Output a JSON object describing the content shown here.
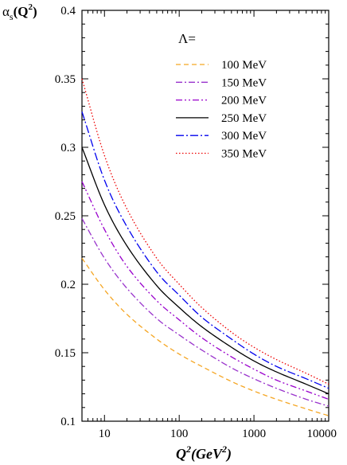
{
  "chart_data": {
    "type": "line",
    "title": "",
    "ylabel": {
      "base": "α",
      "sub": "s",
      "mid": "(Q",
      "sup": "2",
      "end": ")"
    },
    "xlabel": {
      "base": "Q",
      "sup": "2",
      "mid": "(GeV",
      "sup2": "2",
      "end": ")"
    },
    "xscale": "log",
    "xlim": [
      5,
      10000
    ],
    "ylim": [
      0.1,
      0.4
    ],
    "yticks": [
      {
        "value": 0.1,
        "label": "0.1"
      },
      {
        "value": 0.15,
        "label": "0.15"
      },
      {
        "value": 0.2,
        "label": "0.2"
      },
      {
        "value": 0.25,
        "label": "0.25"
      },
      {
        "value": 0.3,
        "label": "0.3"
      },
      {
        "value": 0.35,
        "label": "0.35"
      },
      {
        "value": 0.4,
        "label": "0.4"
      }
    ],
    "xticks": [
      {
        "value": 10,
        "label": "10"
      },
      {
        "value": 100,
        "label": "100"
      },
      {
        "value": 1000,
        "label": "1000"
      },
      {
        "value": 10000,
        "label": "10000"
      }
    ],
    "grid": false,
    "legend": {
      "title": "Λ=",
      "position": "top-right"
    },
    "x": [
      5,
      10,
      20,
      50,
      100,
      200,
      500,
      1000,
      2000,
      5000,
      10000
    ],
    "series": [
      {
        "name": "100 MeV",
        "color": "#f5a623",
        "dash": "dashed",
        "values": [
          0.219,
          0.196,
          0.178,
          0.16,
          0.149,
          0.14,
          0.129,
          0.122,
          0.116,
          0.109,
          0.104
        ]
      },
      {
        "name": "150 MeV",
        "color": "#9933cc",
        "dash": "dashdot",
        "values": [
          0.248,
          0.219,
          0.197,
          0.175,
          0.163,
          0.152,
          0.139,
          0.131,
          0.124,
          0.116,
          0.111
        ]
      },
      {
        "name": "200 MeV",
        "color": "#9900cc",
        "dash": "dashdotdot",
        "values": [
          0.275,
          0.24,
          0.213,
          0.188,
          0.174,
          0.161,
          0.147,
          0.138,
          0.13,
          0.122,
          0.116
        ]
      },
      {
        "name": "250 MeV",
        "color": "#000000",
        "dash": "solid",
        "values": [
          0.3,
          0.258,
          0.228,
          0.199,
          0.183,
          0.169,
          0.154,
          0.144,
          0.136,
          0.127,
          0.12
        ]
      },
      {
        "name": "300 MeV",
        "color": "#0000ee",
        "dash": "dashdotlong",
        "values": [
          0.326,
          0.276,
          0.242,
          0.209,
          0.192,
          0.176,
          0.16,
          0.149,
          0.14,
          0.131,
          0.124
        ]
      },
      {
        "name": "350 MeV",
        "color": "#ee0000",
        "dash": "dotted",
        "values": [
          0.35,
          0.294,
          0.255,
          0.219,
          0.2,
          0.183,
          0.165,
          0.154,
          0.145,
          0.135,
          0.127
        ]
      }
    ]
  }
}
